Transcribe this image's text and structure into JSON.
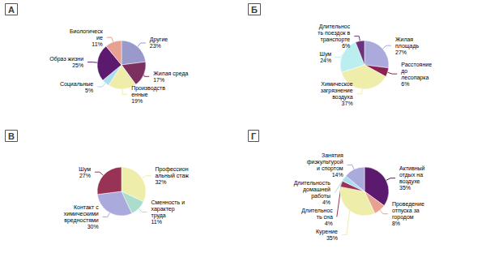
{
  "chart_data": [
    {
      "type": "pie",
      "title": "А",
      "categories": [
        "Другие",
        "Жилая среда",
        "Производств\nенные",
        "Социальные",
        "Образ жизни",
        "Биологическ\nие"
      ],
      "values": [
        23,
        17,
        19,
        5,
        25,
        11
      ],
      "value_labels": [
        "23%",
        "17%",
        "19%",
        "5%",
        "25%",
        "11%"
      ],
      "colors": [
        "#9999cc",
        "#7b3060",
        "#eeeeaa",
        "#aaddee",
        "#5c1a6e",
        "#e8a090"
      ]
    },
    {
      "type": "pie",
      "title": "Б",
      "categories": [
        "Жилая\nплощадь",
        "Расстояние\nдо\nлесопарка",
        "Химическое\nзагрязнение\nвоздуха",
        "Шум",
        "Длительнос\nть поездок в\nтранспорте"
      ],
      "values": [
        27,
        6,
        37,
        24,
        6
      ],
      "value_labels": [
        "27%",
        "6%",
        "37%",
        "24%",
        "6%"
      ],
      "colors": [
        "#aaaadd",
        "#8b2252",
        "#eeeeaa",
        "#bbeeee",
        "#6b3080"
      ]
    },
    {
      "type": "pie",
      "title": "В",
      "categories": [
        "Профессион\nальный стаж",
        "Сменность и\nхарактер\nтруда",
        "Контакт с\nхимическими\nвредностями",
        "Шум"
      ],
      "values": [
        32,
        11,
        30,
        27
      ],
      "value_labels": [
        "32%",
        "11%",
        "30%",
        "27%"
      ],
      "colors": [
        "#eeeeaa",
        "#aaddcc",
        "#aaaadd",
        "#993355"
      ]
    },
    {
      "type": "pie",
      "title": "Г",
      "categories": [
        "Активный\nотдых на\nвоздухе",
        "Проведение\nотпуска за\nгородом",
        "Курение",
        "Длительнос\nть сна",
        "Длительность\nдомашней\nработы",
        "Занятия\nфизкультурой\nи спортом"
      ],
      "values": [
        35,
        8,
        35,
        4,
        4,
        14
      ],
      "value_labels": [
        "35%",
        "8%",
        "35%",
        "4%",
        "4%",
        "14%"
      ],
      "colors": [
        "#5c1a6e",
        "#e8a090",
        "#eeeeaa",
        "#993355",
        "#aaddee",
        "#aaaadd"
      ]
    }
  ]
}
